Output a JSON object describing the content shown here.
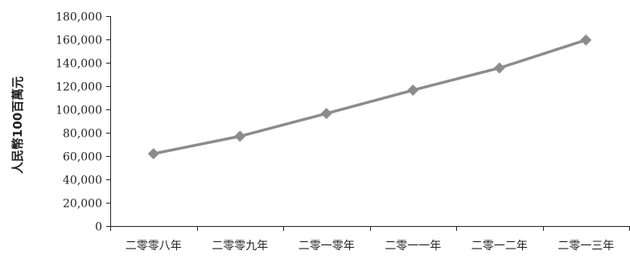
{
  "chart_data": {
    "type": "line",
    "title": "",
    "xlabel": "",
    "ylabel": "人民幣100百萬元",
    "categories": [
      "二零零八年",
      "二零零九年",
      "二零一零年",
      "二零一一年",
      "二零一二年",
      "二零一三年"
    ],
    "series": [
      {
        "values": [
          62000,
          77000,
          96500,
          116500,
          135500,
          159500
        ],
        "color": "#8c8c8c",
        "marker": "diamond"
      }
    ],
    "ylim": [
      0,
      180000
    ],
    "yticks": [
      0,
      20000,
      40000,
      60000,
      80000,
      100000,
      120000,
      140000,
      160000,
      180000
    ],
    "ytick_labels": [
      "0",
      "20,000",
      "40,000",
      "60,000",
      "80,000",
      "100,000",
      "120,000",
      "140,000",
      "160,000",
      "180,000"
    ],
    "grid": false,
    "legend": "none"
  }
}
